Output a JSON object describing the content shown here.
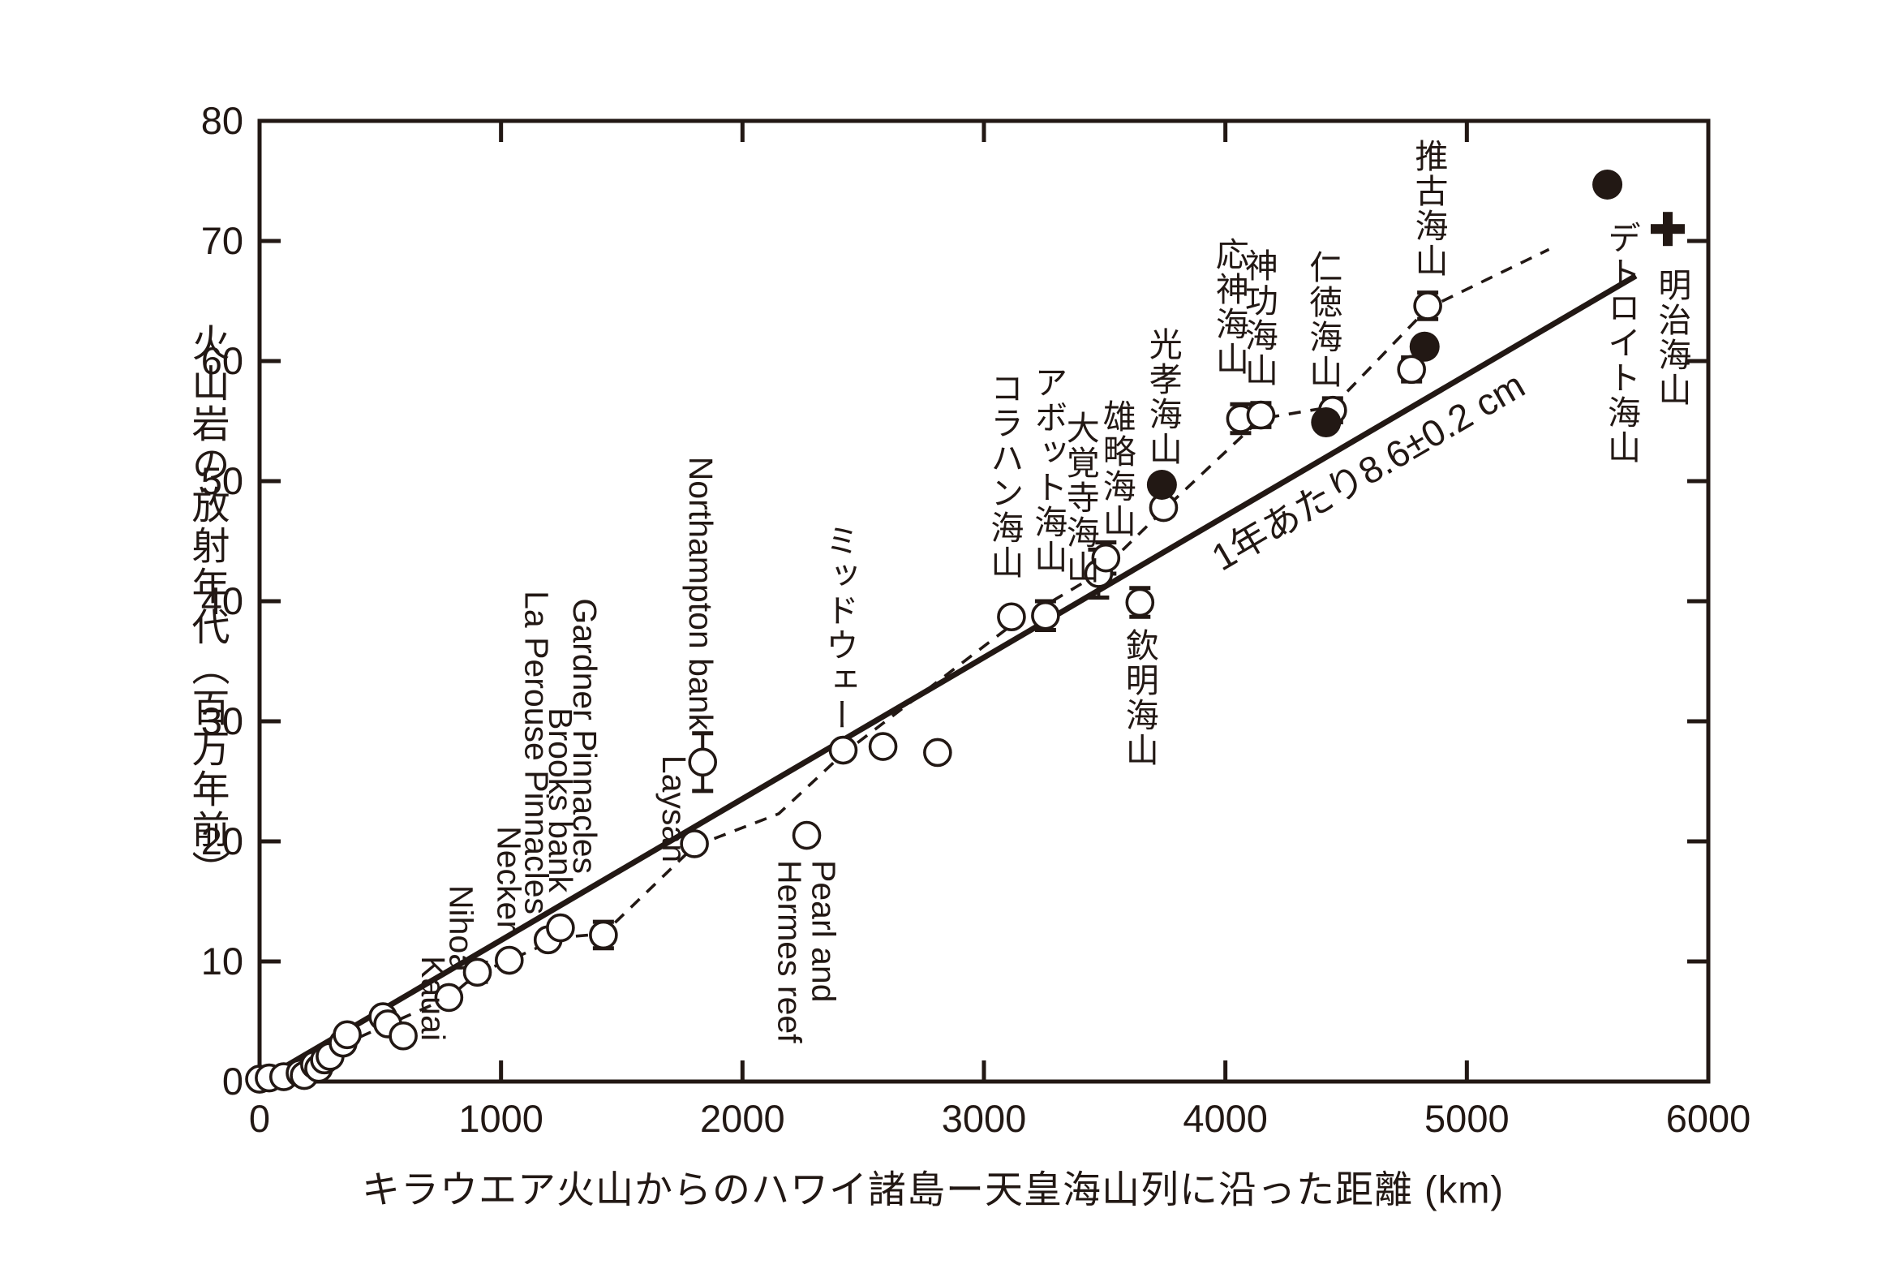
{
  "figure": {
    "background": "#ffffff",
    "ink_color": "#221814"
  },
  "chart_data": {
    "type": "scatter",
    "title": "",
    "xlabel": "キラウエア火山からのハワイ諸島ー天皇海山列に沿った距離 (km)",
    "ylabel": "火山岩の放射年代（百万年前）",
    "xlim": [
      0,
      6000
    ],
    "ylim": [
      0,
      80
    ],
    "xticks": [
      0,
      1000,
      2000,
      3000,
      4000,
      5000,
      6000
    ],
    "yticks": [
      0,
      10,
      20,
      30,
      40,
      50,
      60,
      70,
      80
    ],
    "grid": "off",
    "legend": "none",
    "fit_line": {
      "label": "1年あたり8.6±0.2 cm",
      "points": [
        [
          0,
          0
        ],
        [
          5700,
          67.1
        ]
      ]
    },
    "dashed_line": {
      "points": [
        [
          0,
          0
        ],
        [
          784,
          7.0
        ],
        [
          902,
          9.0
        ],
        [
          1034,
          10.1
        ],
        [
          1246,
          12.0
        ],
        [
          1424,
          12.3
        ],
        [
          1801,
          19.6
        ],
        [
          2150,
          22.3
        ],
        [
          2417,
          27.3
        ],
        [
          3114,
          38.0
        ],
        [
          3475,
          42.3
        ],
        [
          3744,
          47.6
        ],
        [
          4147,
          55.2
        ],
        [
          4444,
          56.2
        ],
        [
          4838,
          64.4
        ],
        [
          5340,
          69.3
        ]
      ]
    },
    "series": [
      {
        "name": "open-circles",
        "marker": "open-circle",
        "points": [
          {
            "x": 0,
            "y": 0.2
          },
          {
            "x": 40,
            "y": 0.3
          },
          {
            "x": 100,
            "y": 0.4
          },
          {
            "x": 168,
            "y": 0.7
          },
          {
            "x": 185,
            "y": 0.5
          },
          {
            "x": 228,
            "y": 1.4
          },
          {
            "x": 245,
            "y": 1.1
          },
          {
            "x": 269,
            "y": 1.8
          },
          {
            "x": 292,
            "y": 2.1
          },
          {
            "x": 346,
            "y": 3.2
          },
          {
            "x": 363,
            "y": 3.9
          },
          {
            "x": 511,
            "y": 5.4,
            "label": "Kauai",
            "lang": "en",
            "side": "above",
            "dx": 61,
            "gap": -30
          },
          {
            "x": 531,
            "y": 4.8
          },
          {
            "x": 595,
            "y": 3.8
          },
          {
            "x": 784,
            "y": 7.0,
            "label": "Nihoa",
            "lang": "en",
            "side": "above",
            "dx": 14,
            "gap": 31
          },
          {
            "x": 902,
            "y": 9.1,
            "err": 0.8
          },
          {
            "x": 1034,
            "y": 10.1,
            "label": "Necker",
            "lang": "en",
            "side": "above",
            "dx": -1,
            "gap": 36
          },
          {
            "x": 1195,
            "y": 11.8,
            "label": "La Perouse Pinnacles",
            "lang": "en",
            "side": "above",
            "dx": -15,
            "gap": 31
          },
          {
            "x": 1246,
            "y": 12.8,
            "label": "Brooks bank",
            "lang": "en",
            "side": "above",
            "dx": -1,
            "gap": 44
          },
          {
            "x": 1424,
            "y": 12.2,
            "err": 1.1,
            "label": "Gardner Pinnacles",
            "lang": "en",
            "side": "above",
            "dx": -24,
            "gap": 75
          },
          {
            "x": 1801,
            "y": 19.8,
            "label": "Laysan",
            "lang": "en",
            "side": "above",
            "dx": -26,
            "gap": -23
          },
          {
            "x": 1835,
            "y": 26.6,
            "err": 2.4,
            "label": "Northampton bank",
            "lang": "en",
            "side": "above",
            "dx": -3,
            "gap": 39
          },
          {
            "x": 2266,
            "y": 20.5,
            "label": "Pearl and\nHermes reef",
            "lang": "en",
            "side": "below",
            "dx": -1,
            "gap": 30
          },
          {
            "x": 2417,
            "y": 27.6,
            "label": "ミッドウェー",
            "lang": "ja",
            "side": "above",
            "dx": -6,
            "gap": 22
          },
          {
            "x": 2582,
            "y": 27.9
          },
          {
            "x": 2808,
            "y": 27.4
          },
          {
            "x": 3114,
            "y": 38.7,
            "label": "コラハン海山",
            "lang": "ja",
            "side": "above",
            "dx": -10,
            "gap": 45
          },
          {
            "x": 3255,
            "y": 38.8,
            "err": 1.2,
            "label": "アボット海山",
            "lang": "ja",
            "side": "above",
            "dx": 2,
            "gap": 51
          },
          {
            "x": 3475,
            "y": 42.3,
            "err": 2.0,
            "label": "大覚寺海山",
            "lang": "ja",
            "side": "above",
            "dx": -24,
            "gap": -14
          },
          {
            "x": 3505,
            "y": 43.6,
            "err": 1.3,
            "label": "雄略海山",
            "lang": "ja",
            "side": "above",
            "dx": 12,
            "gap": 24
          },
          {
            "x": 3646,
            "y": 39.9,
            "err": 1.2,
            "label": "欽明海山",
            "lang": "ja",
            "side": "below",
            "dx": -2,
            "gap": 32
          },
          {
            "x": 3744,
            "y": 47.8
          },
          {
            "x": 4063,
            "y": 55.2,
            "err": 1.2,
            "label": "応神海山",
            "lang": "ja",
            "side": "above",
            "dx": -15,
            "gap": 52
          },
          {
            "x": 4147,
            "y": 55.5,
            "err": 1.0,
            "label": "神功海山",
            "lang": "ja",
            "side": "above",
            "dx": -4,
            "gap": 34
          },
          {
            "x": 4444,
            "y": 55.9,
            "err": 1.0,
            "label": "仁徳海山",
            "lang": "ja",
            "side": "above",
            "dx": -13,
            "gap": 26
          },
          {
            "x": 4771,
            "y": 59.3,
            "err": 1.0
          },
          {
            "x": 4838,
            "y": 64.6,
            "err": 1.1,
            "label": "推古海山",
            "lang": "ja",
            "side": "above",
            "dx": 0,
            "gap": 34
          }
        ]
      },
      {
        "name": "filled-circles",
        "marker": "filled-circle",
        "points": [
          {
            "x": 3737,
            "y": 49.7,
            "label": "光孝海山",
            "lang": "ja",
            "side": "above",
            "dx": 0,
            "gap": 22
          },
          {
            "x": 4417,
            "y": 54.9
          },
          {
            "x": 4825,
            "y": 61.2
          },
          {
            "x": 5582,
            "y": 74.7,
            "label": "デトロイト海山",
            "lang": "ja",
            "side": "below",
            "dx": 16,
            "gap": 45
          }
        ]
      },
      {
        "name": "plus-marks",
        "marker": "plus",
        "points": [
          {
            "x": 5832,
            "y": 71.0,
            "label": "明治海山",
            "lang": "ja",
            "side": "below",
            "dx": 4,
            "gap": 48
          }
        ]
      }
    ]
  }
}
